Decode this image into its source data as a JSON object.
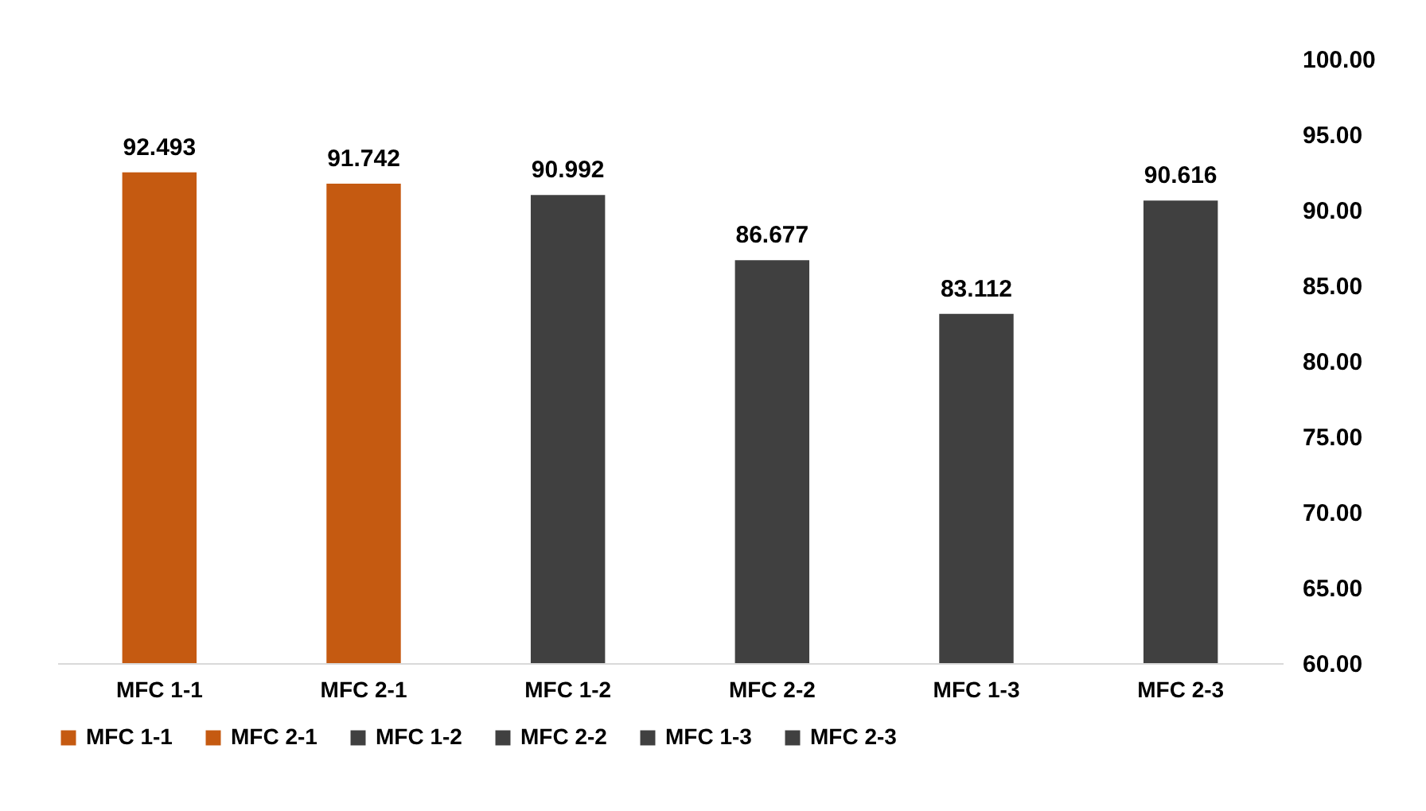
{
  "chart_data": {
    "type": "bar",
    "categories": [
      "MFC 1-1",
      "MFC 2-1",
      "MFC 1-2",
      "MFC 2-2",
      "MFC 1-3",
      "MFC 2-3"
    ],
    "series": [
      {
        "name": "MFC 1-1",
        "color": "#c55a11",
        "values": [
          92.493,
          null,
          null,
          null,
          null,
          null
        ]
      },
      {
        "name": "MFC 2-1",
        "color": "#c55a11",
        "values": [
          null,
          91.742,
          null,
          null,
          null,
          null
        ]
      },
      {
        "name": "MFC 1-2",
        "color": "#404040",
        "values": [
          null,
          null,
          90.992,
          null,
          null,
          null
        ]
      },
      {
        "name": "MFC 2-2",
        "color": "#404040",
        "values": [
          null,
          null,
          null,
          86.677,
          null,
          null
        ]
      },
      {
        "name": "MFC 1-3",
        "color": "#404040",
        "values": [
          null,
          null,
          null,
          null,
          83.112,
          null
        ]
      },
      {
        "name": "MFC 2-3",
        "color": "#404040",
        "values": [
          null,
          null,
          null,
          null,
          null,
          90.616
        ]
      }
    ],
    "ylim": [
      60,
      100
    ],
    "yticks": [
      {
        "value": 60,
        "label": "60.00"
      },
      {
        "value": 65,
        "label": "65.00"
      },
      {
        "value": 70,
        "label": "70.00"
      },
      {
        "value": 75,
        "label": "75.00"
      },
      {
        "value": 80,
        "label": "80.00"
      },
      {
        "value": 85,
        "label": "85.00"
      },
      {
        "value": 90,
        "label": "90.00"
      },
      {
        "value": 95,
        "label": "95.00"
      },
      {
        "value": 100,
        "label": "100.00"
      }
    ],
    "data_labels": true,
    "legend": "bottom",
    "grid": false
  }
}
